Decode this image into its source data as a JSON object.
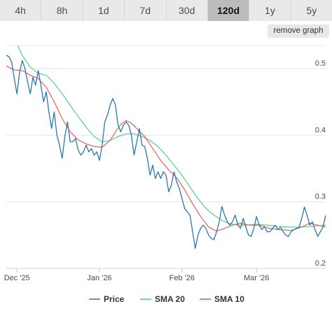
{
  "range_tabs": [
    {
      "label": "4h",
      "active": false
    },
    {
      "label": "8h",
      "active": false
    },
    {
      "label": "1d",
      "active": false
    },
    {
      "label": "7d",
      "active": false
    },
    {
      "label": "30d",
      "active": false
    },
    {
      "label": "120d",
      "active": true
    },
    {
      "label": "1y",
      "active": false
    },
    {
      "label": "5y",
      "active": false
    }
  ],
  "remove_graph_label": "remove graph",
  "chart_data": {
    "type": "line",
    "x_unit": "date",
    "x_start": "2025-11-27",
    "x_end": "2026-03-27",
    "ylim": [
      0.2,
      0.54
    ],
    "y_ticks": [
      {
        "value": 0.2,
        "label": "0.2"
      },
      {
        "value": 0.3,
        "label": "0.3"
      },
      {
        "value": 0.4,
        "label": "0.4"
      },
      {
        "value": 0.5,
        "label": "0.5"
      }
    ],
    "x_ticks": [
      {
        "date": "2025-12-01",
        "label": "Dec '25"
      },
      {
        "date": "2026-01-01",
        "label": "Jan '26"
      },
      {
        "date": "2026-02-01",
        "label": "Feb '26"
      },
      {
        "date": "2026-03-01",
        "label": "Mar '26"
      }
    ],
    "grid": true,
    "legend_position": "bottom",
    "series": [
      {
        "name": "Price",
        "color": "#2b78ad",
        "points": [
          [
            "2025-11-27",
            0.52
          ],
          [
            "2025-11-28",
            0.518
          ],
          [
            "2025-11-29",
            0.51
          ],
          [
            "2025-11-30",
            0.485
          ],
          [
            "2025-12-01",
            0.462
          ],
          [
            "2025-12-02",
            0.495
          ],
          [
            "2025-12-03",
            0.512
          ],
          [
            "2025-12-04",
            0.5
          ],
          [
            "2025-12-05",
            0.48
          ],
          [
            "2025-12-06",
            0.462
          ],
          [
            "2025-12-07",
            0.487
          ],
          [
            "2025-12-08",
            0.475
          ],
          [
            "2025-12-09",
            0.497
          ],
          [
            "2025-12-10",
            0.475
          ],
          [
            "2025-12-11",
            0.45
          ],
          [
            "2025-12-12",
            0.465
          ],
          [
            "2025-12-13",
            0.435
          ],
          [
            "2025-12-14",
            0.41
          ],
          [
            "2025-12-15",
            0.435
          ],
          [
            "2025-12-16",
            0.4
          ],
          [
            "2025-12-17",
            0.385
          ],
          [
            "2025-12-18",
            0.365
          ],
          [
            "2025-12-19",
            0.398
          ],
          [
            "2025-12-20",
            0.42
          ],
          [
            "2025-12-21",
            0.39
          ],
          [
            "2025-12-22",
            0.39
          ],
          [
            "2025-12-23",
            0.395
          ],
          [
            "2025-12-24",
            0.378
          ],
          [
            "2025-12-25",
            0.37
          ],
          [
            "2025-12-26",
            0.375
          ],
          [
            "2025-12-27",
            0.385
          ],
          [
            "2025-12-28",
            0.375
          ],
          [
            "2025-12-29",
            0.38
          ],
          [
            "2025-12-30",
            0.37
          ],
          [
            "2025-12-31",
            0.375
          ],
          [
            "2026-01-01",
            0.362
          ],
          [
            "2026-01-02",
            0.385
          ],
          [
            "2026-01-03",
            0.42
          ],
          [
            "2026-01-04",
            0.43
          ],
          [
            "2026-01-05",
            0.445
          ],
          [
            "2026-01-06",
            0.455
          ],
          [
            "2026-01-07",
            0.445
          ],
          [
            "2026-01-08",
            0.415
          ],
          [
            "2026-01-09",
            0.405
          ],
          [
            "2026-01-10",
            0.415
          ],
          [
            "2026-01-11",
            0.42
          ],
          [
            "2026-01-12",
            0.415
          ],
          [
            "2026-01-13",
            0.4
          ],
          [
            "2026-01-14",
            0.37
          ],
          [
            "2026-01-15",
            0.39
          ],
          [
            "2026-01-16",
            0.41
          ],
          [
            "2026-01-17",
            0.385
          ],
          [
            "2026-01-18",
            0.383
          ],
          [
            "2026-01-19",
            0.365
          ],
          [
            "2026-01-20",
            0.34
          ],
          [
            "2026-01-21",
            0.355
          ],
          [
            "2026-01-22",
            0.335
          ],
          [
            "2026-01-23",
            0.345
          ],
          [
            "2026-01-24",
            0.335
          ],
          [
            "2026-01-25",
            0.345
          ],
          [
            "2026-01-26",
            0.34
          ],
          [
            "2026-01-27",
            0.315
          ],
          [
            "2026-01-28",
            0.325
          ],
          [
            "2026-01-29",
            0.345
          ],
          [
            "2026-01-30",
            0.33
          ],
          [
            "2026-01-31",
            0.32
          ],
          [
            "2026-02-01",
            0.305
          ],
          [
            "2026-02-02",
            0.29
          ],
          [
            "2026-02-03",
            0.285
          ],
          [
            "2026-02-04",
            0.28
          ],
          [
            "2026-02-05",
            0.255
          ],
          [
            "2026-02-06",
            0.23
          ],
          [
            "2026-02-07",
            0.25
          ],
          [
            "2026-02-08",
            0.26
          ],
          [
            "2026-02-09",
            0.265
          ],
          [
            "2026-02-10",
            0.26
          ],
          [
            "2026-02-11",
            0.25
          ],
          [
            "2026-02-12",
            0.245
          ],
          [
            "2026-02-13",
            0.243
          ],
          [
            "2026-02-14",
            0.255
          ],
          [
            "2026-02-15",
            0.27
          ],
          [
            "2026-02-16",
            0.293
          ],
          [
            "2026-02-17",
            0.28
          ],
          [
            "2026-02-18",
            0.27
          ],
          [
            "2026-02-19",
            0.265
          ],
          [
            "2026-02-20",
            0.27
          ],
          [
            "2026-02-21",
            0.28
          ],
          [
            "2026-02-22",
            0.265
          ],
          [
            "2026-02-23",
            0.26
          ],
          [
            "2026-02-24",
            0.275
          ],
          [
            "2026-02-25",
            0.262
          ],
          [
            "2026-02-26",
            0.25
          ],
          [
            "2026-02-27",
            0.248
          ],
          [
            "2026-02-28",
            0.26
          ],
          [
            "2026-03-01",
            0.278
          ],
          [
            "2026-03-02",
            0.265
          ],
          [
            "2026-03-03",
            0.258
          ],
          [
            "2026-03-04",
            0.263
          ],
          [
            "2026-03-05",
            0.255
          ],
          [
            "2026-03-06",
            0.255
          ],
          [
            "2026-03-07",
            0.26
          ],
          [
            "2026-03-08",
            0.265
          ],
          [
            "2026-03-09",
            0.258
          ],
          [
            "2026-03-10",
            0.262
          ],
          [
            "2026-03-11",
            0.255
          ],
          [
            "2026-03-12",
            0.25
          ],
          [
            "2026-03-13",
            0.248
          ],
          [
            "2026-03-14",
            0.255
          ],
          [
            "2026-03-15",
            0.258
          ],
          [
            "2026-03-16",
            0.26
          ],
          [
            "2026-03-17",
            0.262
          ],
          [
            "2026-03-18",
            0.275
          ],
          [
            "2026-03-19",
            0.292
          ],
          [
            "2026-03-20",
            0.28
          ],
          [
            "2026-03-21",
            0.265
          ],
          [
            "2026-03-22",
            0.27
          ],
          [
            "2026-03-23",
            0.258
          ],
          [
            "2026-03-24",
            0.248
          ],
          [
            "2026-03-25",
            0.255
          ],
          [
            "2026-03-26",
            0.262
          ],
          [
            "2026-03-27",
            0.28
          ]
        ]
      },
      {
        "name": "SMA 20",
        "color": "#4ccb82",
        "points": [
          [
            "2025-11-27",
            0.57
          ],
          [
            "2025-11-30",
            0.545
          ],
          [
            "2025-12-03",
            0.52
          ],
          [
            "2025-12-06",
            0.502
          ],
          [
            "2025-12-09",
            0.493
          ],
          [
            "2025-12-12",
            0.49
          ],
          [
            "2025-12-15",
            0.478
          ],
          [
            "2025-12-18",
            0.462
          ],
          [
            "2025-12-21",
            0.445
          ],
          [
            "2025-12-24",
            0.428
          ],
          [
            "2025-12-27",
            0.412
          ],
          [
            "2025-12-30",
            0.398
          ],
          [
            "2026-01-02",
            0.39
          ],
          [
            "2026-01-05",
            0.392
          ],
          [
            "2026-01-08",
            0.398
          ],
          [
            "2026-01-11",
            0.402
          ],
          [
            "2026-01-14",
            0.402
          ],
          [
            "2026-01-17",
            0.398
          ],
          [
            "2026-01-20",
            0.392
          ],
          [
            "2026-01-23",
            0.383
          ],
          [
            "2026-01-26",
            0.37
          ],
          [
            "2026-01-29",
            0.355
          ],
          [
            "2026-02-01",
            0.34
          ],
          [
            "2026-02-04",
            0.322
          ],
          [
            "2026-02-07",
            0.305
          ],
          [
            "2026-02-10",
            0.29
          ],
          [
            "2026-02-13",
            0.28
          ],
          [
            "2026-02-16",
            0.272
          ],
          [
            "2026-02-19",
            0.267
          ],
          [
            "2026-02-22",
            0.265
          ],
          [
            "2026-02-25",
            0.265
          ],
          [
            "2026-03-01",
            0.266
          ],
          [
            "2026-03-05",
            0.265
          ],
          [
            "2026-03-09",
            0.263
          ],
          [
            "2026-03-13",
            0.262
          ],
          [
            "2026-03-17",
            0.262
          ],
          [
            "2026-03-21",
            0.263
          ],
          [
            "2026-03-24",
            0.264
          ],
          [
            "2026-03-27",
            0.265
          ]
        ]
      },
      {
        "name": "SMA 10",
        "color": "#e8524a",
        "points": [
          [
            "2025-11-27",
            0.504
          ],
          [
            "2025-11-30",
            0.498
          ],
          [
            "2025-12-03",
            0.497
          ],
          [
            "2025-12-06",
            0.49
          ],
          [
            "2025-12-09",
            0.485
          ],
          [
            "2025-12-12",
            0.472
          ],
          [
            "2025-12-15",
            0.45
          ],
          [
            "2025-12-18",
            0.425
          ],
          [
            "2025-12-21",
            0.405
          ],
          [
            "2025-12-24",
            0.393
          ],
          [
            "2025-12-27",
            0.387
          ],
          [
            "2025-12-30",
            0.383
          ],
          [
            "2026-01-02",
            0.382
          ],
          [
            "2026-01-05",
            0.392
          ],
          [
            "2026-01-07",
            0.405
          ],
          [
            "2026-01-09",
            0.416
          ],
          [
            "2026-01-11",
            0.422
          ],
          [
            "2026-01-13",
            0.418
          ],
          [
            "2026-01-15",
            0.41
          ],
          [
            "2026-01-18",
            0.398
          ],
          [
            "2026-01-21",
            0.38
          ],
          [
            "2026-01-24",
            0.362
          ],
          [
            "2026-01-27",
            0.348
          ],
          [
            "2026-01-30",
            0.336
          ],
          [
            "2026-02-02",
            0.318
          ],
          [
            "2026-02-05",
            0.297
          ],
          [
            "2026-02-08",
            0.278
          ],
          [
            "2026-02-11",
            0.262
          ],
          [
            "2026-02-14",
            0.256
          ],
          [
            "2026-02-17",
            0.26
          ],
          [
            "2026-02-20",
            0.265
          ],
          [
            "2026-02-23",
            0.268
          ],
          [
            "2026-02-26",
            0.265
          ],
          [
            "2026-03-02",
            0.265
          ],
          [
            "2026-03-06",
            0.26
          ],
          [
            "2026-03-10",
            0.258
          ],
          [
            "2026-03-14",
            0.257
          ],
          [
            "2026-03-18",
            0.262
          ],
          [
            "2026-03-21",
            0.268
          ],
          [
            "2026-03-24",
            0.265
          ],
          [
            "2026-03-27",
            0.262
          ]
        ]
      }
    ]
  }
}
